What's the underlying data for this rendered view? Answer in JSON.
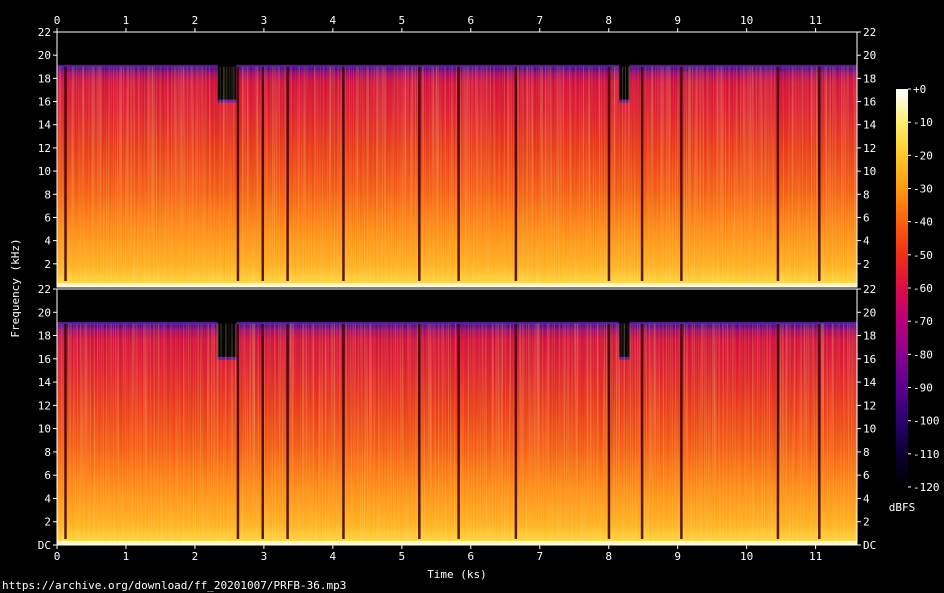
{
  "chart_data": {
    "type": "heatmap",
    "title": "",
    "xlabel": "Time (ks)",
    "ylabel": "Frequency (kHz)",
    "source_url": "https://archive.org/download/ff_20201007/PRFB-36.mp3",
    "x_ticks": [
      0,
      1,
      2,
      3,
      4,
      5,
      6,
      7,
      8,
      9,
      10,
      11
    ],
    "xlim": [
      0,
      11.6
    ],
    "ylim": [
      0,
      22
    ],
    "channels": [
      {
        "y_ticks": [
          "2",
          "4",
          "6",
          "8",
          "10",
          "12",
          "14",
          "16",
          "18",
          "20",
          "22"
        ]
      },
      {
        "y_ticks": [
          "DC",
          "2",
          "4",
          "6",
          "8",
          "10",
          "12",
          "14",
          "16",
          "18",
          "20",
          "22"
        ]
      }
    ],
    "colorbar": {
      "label": "dBFS",
      "range": [
        -120,
        0
      ],
      "ticks": [
        "+0",
        "-10",
        "-20",
        "-30",
        "-40",
        "-50",
        "-60",
        "-70",
        "-80",
        "-90",
        "-100",
        "-110",
        "-120"
      ],
      "colors": [
        "#000000",
        "#0a0030",
        "#2a0070",
        "#5a0090",
        "#8a0090",
        "#b8007a",
        "#dc0c46",
        "#f03018",
        "#fa6010",
        "#ff9a12",
        "#ffc828",
        "#fff06e",
        "#ffffff"
      ]
    },
    "content_cutoff_khz": 19,
    "reduced_cutoff_khz": 16,
    "reduced_cutoff_segments_ks": [
      [
        2.33,
        2.6
      ],
      [
        8.15,
        8.3
      ]
    ],
    "silent_gaps_ks": [
      0.12,
      2.62,
      2.98,
      3.34,
      4.15,
      5.25,
      5.82,
      6.65,
      8.0,
      8.48,
      9.05,
      10.45,
      11.05
    ]
  }
}
